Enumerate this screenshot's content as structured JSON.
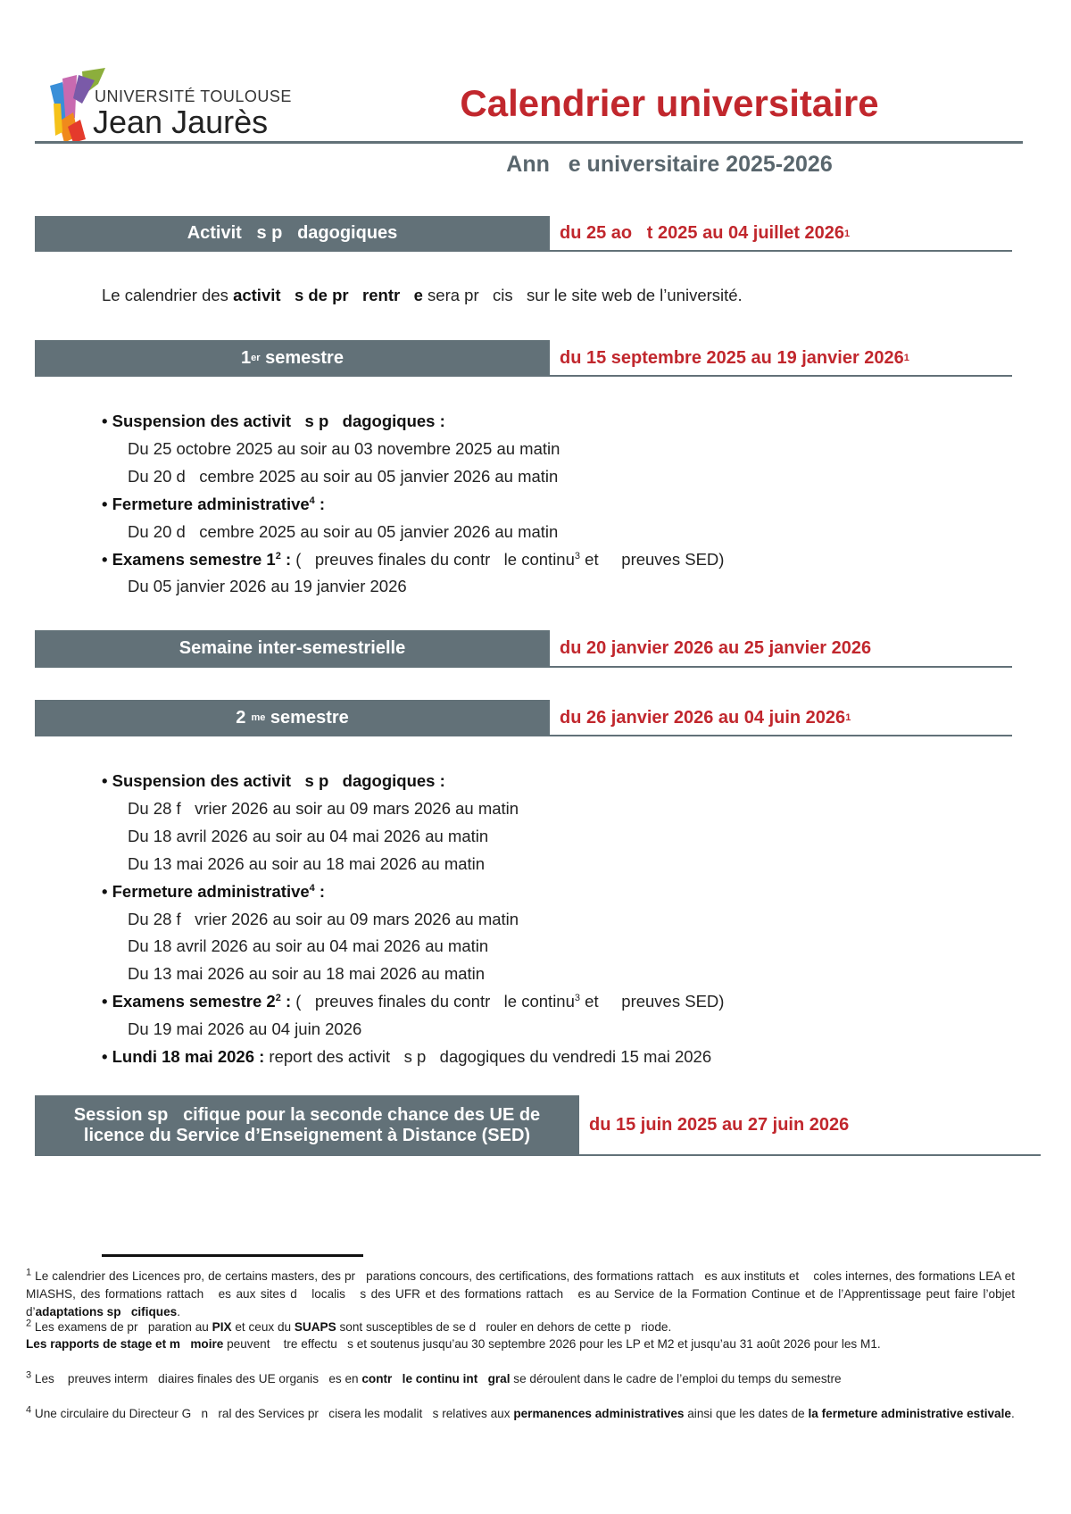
{
  "logo": {
    "line1": "UNIVERSITÉ TOULOUSE",
    "line2": "Jean Jaurès"
  },
  "header": {
    "title": "Calendrier universitaire",
    "subtitle": "Ann   e universitaire 2025-2026"
  },
  "colors": {
    "accent": "#c1272d",
    "band": "#627178"
  },
  "sections": [
    {
      "label": "Activit   s p   dagogiques",
      "sup": "",
      "label_rest": "",
      "dates": "du 25 ao   t 2025 au 04 juillet 2026",
      "note": "1"
    },
    {
      "label": "1",
      "sup": "er",
      "label_rest": " semestre",
      "dates": "du 15 septembre 2025 au 19 janvier 2026",
      "note": "1"
    },
    {
      "label": "Semaine inter-semestrielle",
      "sup": "",
      "label_rest": "",
      "dates": "du 20 janvier 2026 au 25 janvier 2026",
      "note": ""
    },
    {
      "label": "2",
      "sup": "  me",
      "label_rest": " semestre",
      "dates": "du 26 janvier 2026 au 04 juin 2026",
      "note": "1"
    },
    {
      "label": "Session sp   cifique pour la seconde chance des UE de\nlicence du Service d’Enseignement à Distance (SED)",
      "sup": "",
      "label_rest": "",
      "dates": "du 15 juin 2025 au 27 juin 2026",
      "note": ""
    }
  ],
  "intro": [
    {
      "t": "Le calendrier des ",
      "b": false
    },
    {
      "t": "activit   s de pr   rentr   e",
      "b": true
    },
    {
      "t": " sera pr   cis   sur le site web de l’université.",
      "b": false
    }
  ],
  "semester1": [
    {
      "indent": false,
      "segs": [
        {
          "t": "• Suspension des activit   s p   dagogiques :",
          "b": true
        }
      ]
    },
    {
      "indent": true,
      "segs": [
        {
          "t": "Du 25 octobre 2025 au soir au 03 novembre 2025 au matin",
          "b": false
        }
      ]
    },
    {
      "indent": true,
      "segs": [
        {
          "t": "Du 20 d   cembre 2025 au soir au 05 janvier 2026 au matin",
          "b": false
        }
      ]
    },
    {
      "indent": false,
      "segs": [
        {
          "t": "• Fermeture administrative",
          "b": true
        },
        {
          "t": "4",
          "b": true,
          "sup": true
        },
        {
          "t": " :",
          "b": true
        }
      ]
    },
    {
      "indent": true,
      "segs": [
        {
          "t": "Du 20 d   cembre 2025 au soir au 05 janvier 2026 au matin",
          "b": false
        }
      ]
    },
    {
      "indent": false,
      "segs": [
        {
          "t": "• Examens semestre 1",
          "b": true
        },
        {
          "t": "2",
          "b": true,
          "sup": true
        },
        {
          "t": " :",
          "b": true
        },
        {
          "t": " (   preuves finales du contr   le continu",
          "b": false
        },
        {
          "t": "3",
          "b": false,
          "sup": true
        },
        {
          "t": " et     preuves SED)",
          "b": false
        }
      ]
    },
    {
      "indent": true,
      "segs": [
        {
          "t": "Du 05 janvier 2026 au 19 janvier 2026",
          "b": false
        }
      ]
    }
  ],
  "semester2": [
    {
      "indent": false,
      "segs": [
        {
          "t": "• Suspension des activit   s p   dagogiques :",
          "b": true
        }
      ]
    },
    {
      "indent": true,
      "segs": [
        {
          "t": "Du 28 f   vrier 2026 au soir au 09 mars 2026 au matin",
          "b": false
        }
      ]
    },
    {
      "indent": true,
      "segs": [
        {
          "t": "Du 18 avril 2026 au soir au 04 mai 2026 au matin",
          "b": false
        }
      ]
    },
    {
      "indent": true,
      "segs": [
        {
          "t": "Du 13 mai 2026 au soir au 18 mai 2026 au matin",
          "b": false
        }
      ]
    },
    {
      "indent": false,
      "segs": [
        {
          "t": "• Fermeture administrative",
          "b": true
        },
        {
          "t": "4",
          "b": true,
          "sup": true
        },
        {
          "t": " :",
          "b": true
        }
      ]
    },
    {
      "indent": true,
      "segs": [
        {
          "t": "Du 28 f   vrier 2026 au soir au 09 mars 2026 au matin",
          "b": false
        }
      ]
    },
    {
      "indent": true,
      "segs": [
        {
          "t": "Du 18 avril 2026 au soir au 04 mai 2026 au matin",
          "b": false
        }
      ]
    },
    {
      "indent": true,
      "segs": [
        {
          "t": "Du 13 mai 2026 au soir au 18 mai 2026 au matin",
          "b": false
        }
      ]
    },
    {
      "indent": false,
      "segs": [
        {
          "t": "• Examens semestre 2",
          "b": true
        },
        {
          "t": "2",
          "b": true,
          "sup": true
        },
        {
          "t": " :",
          "b": true
        },
        {
          "t": " (   preuves finales du contr   le continu",
          "b": false
        },
        {
          "t": "3",
          "b": false,
          "sup": true
        },
        {
          "t": " et     preuves SED)",
          "b": false
        }
      ]
    },
    {
      "indent": true,
      "segs": [
        {
          "t": "Du 19 mai 2026 au 04 juin 2026",
          "b": false
        }
      ]
    },
    {
      "indent": false,
      "segs": [
        {
          "t": "• Lundi 18 mai 2026 :",
          "b": true
        },
        {
          "t": " report des activit   s p   dagogiques du vendredi 15 mai 2026",
          "b": false
        }
      ]
    }
  ],
  "footnotes": [
    [
      {
        "t": "1",
        "sup": true
      },
      {
        "t": " Le calendrier des Licences pro, de certains masters, des pr   parations concours, des certifications, des formations rattach   es aux instituts et    coles internes, des formations LEA et MIASHS, des formations rattach   es aux sites d   localis   s des UFR et des formations rattach   es au Service de la Formation Continue et de l’Apprentissage peut faire l’objet d’"
      },
      {
        "t": "adaptations sp   cifiques",
        "b": true
      },
      {
        "t": "."
      }
    ],
    [
      {
        "t": "2",
        "sup": true
      },
      {
        "t": " Les examens de pr   paration au "
      },
      {
        "t": "PIX",
        "b": true
      },
      {
        "t": " et ceux du "
      },
      {
        "t": "SUAPS",
        "b": true
      },
      {
        "t": " sont susceptibles de se d   rouler en dehors de cette p   riode."
      }
    ],
    [
      {
        "t": "Les rapports de stage et m   moire",
        "b": true
      },
      {
        "t": " peuvent    tre effectu   s et soutenus jusqu’au 30 septembre 2026 pour les LP et M2 et jusqu’au 31 août 2026 pour les M1."
      }
    ],
    [
      {
        "t": "3",
        "sup": true
      },
      {
        "t": " Les    preuves interm   diaires finales des UE organis   es en "
      },
      {
        "t": "contr   le continu int   gral",
        "b": true
      },
      {
        "t": " se déroulent dans le cadre de l’emploi du temps du semestre"
      }
    ],
    [
      {
        "t": "4",
        "sup": true
      },
      {
        "t": " Une circulaire du Directeur G   n   ral des Services pr   cisera les modalit   s relatives aux "
      },
      {
        "t": "permanences administratives",
        "b": true
      },
      {
        "t": " ainsi que les dates de "
      },
      {
        "t": "la fermeture administrative estivale",
        "b": true
      },
      {
        "t": "."
      }
    ]
  ]
}
